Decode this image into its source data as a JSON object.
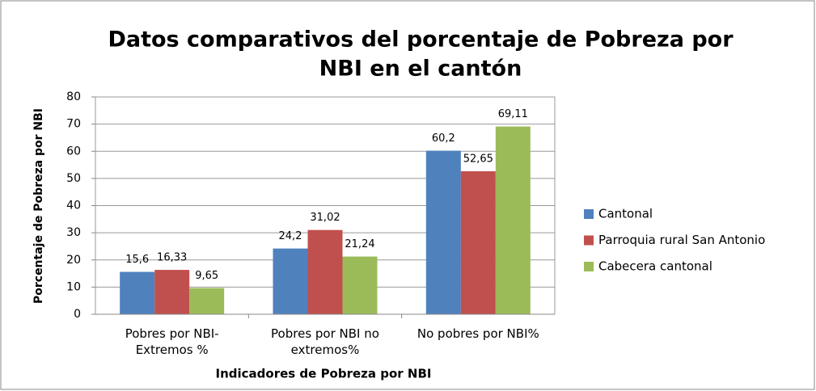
{
  "chart_data": {
    "type": "bar",
    "title": [
      "Datos comparativos del porcentaje de Pobreza por",
      "NBI en el cantón"
    ],
    "x_label": "Indicadores de Pobreza por NBI",
    "y_label": "Porcentaje de Pobreza por NBI",
    "categories": [
      "Pobres por  NBI-\nExtremos %",
      "Pobres por NBI no\nextremos%",
      "No pobres por NBI%"
    ],
    "series": [
      {
        "name": "Cantonal",
        "color": "#4f81bd",
        "values": [
          15.6,
          24.2,
          60.2
        ],
        "value_labels": [
          "15,6",
          "24,2",
          "60,2"
        ]
      },
      {
        "name": "Parroquia rural San Antonio",
        "color": "#c0504d",
        "values": [
          16.33,
          31.02,
          52.65
        ],
        "value_labels": [
          "16,33",
          "31,02",
          "52,65"
        ]
      },
      {
        "name": "Cabecera cantonal",
        "color": "#9bbb59",
        "values": [
          9.65,
          21.24,
          69.11
        ],
        "value_labels": [
          "9,65",
          "21,24",
          "69,11"
        ]
      }
    ],
    "ylim": [
      0,
      80
    ],
    "yticks": [
      0,
      10,
      20,
      30,
      40,
      50,
      60,
      70,
      80
    ],
    "grid": true,
    "legend": "right"
  }
}
